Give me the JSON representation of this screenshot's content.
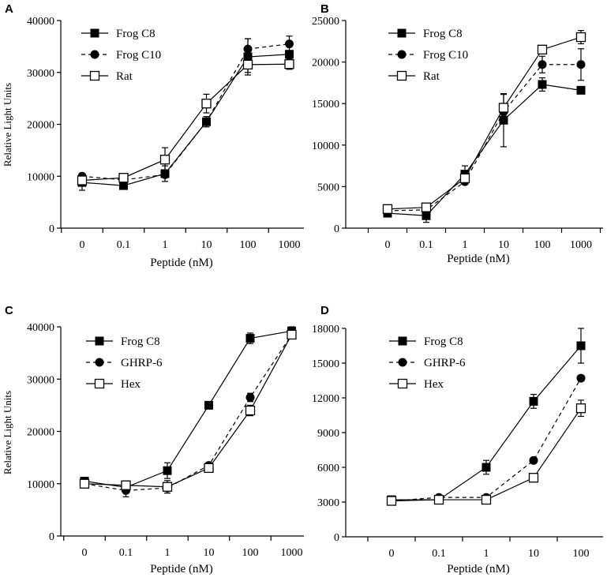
{
  "chart_data": [
    {
      "type": "line",
      "panel_label": "A",
      "xlabel": "Peptide (nM)",
      "ylabel": "Relative Light Units",
      "categories": [
        "0",
        "0.1",
        "1",
        "10",
        "100",
        "1000"
      ],
      "ylim": [
        0,
        40000
      ],
      "yticks": [
        "0",
        "10000",
        "20000",
        "30000",
        "40000"
      ],
      "series": [
        {
          "name": "Frog C8",
          "marker": "filled-square",
          "line": "solid",
          "values": [
            8800,
            8200,
            10500,
            20500,
            33000,
            33500
          ],
          "errors": [
            1500,
            0,
            1500,
            1000,
            3500,
            1500
          ]
        },
        {
          "name": "Frog C10",
          "marker": "filled-circle",
          "line": "dashed",
          "values": [
            10000,
            9300,
            10300,
            20500,
            34500,
            35500
          ],
          "errors": [
            0,
            0,
            0,
            0,
            2000,
            1500
          ]
        },
        {
          "name": "Rat",
          "marker": "open-square",
          "line": "solid",
          "values": [
            9200,
            9700,
            13200,
            24000,
            31500,
            31600
          ],
          "errors": [
            0,
            0,
            2300,
            1800,
            1500,
            1000
          ]
        }
      ]
    },
    {
      "type": "line",
      "panel_label": "B",
      "xlabel": "Peptide (nM)",
      "ylabel": "",
      "categories": [
        "0",
        "0.1",
        "1",
        "10",
        "100",
        "1000"
      ],
      "ylim": [
        0,
        25000
      ],
      "yticks": [
        "0",
        "5000",
        "10000",
        "15000",
        "20000",
        "25000"
      ],
      "series": [
        {
          "name": "Frog C8",
          "marker": "filled-square",
          "line": "solid",
          "values": [
            1800,
            1500,
            6500,
            13000,
            17300,
            16600
          ],
          "errors": [
            0,
            800,
            1000,
            3200,
            800,
            0
          ]
        },
        {
          "name": "Frog C10",
          "marker": "filled-circle",
          "line": "dashed",
          "values": [
            2100,
            2200,
            5600,
            14000,
            19700,
            19700
          ],
          "errors": [
            0,
            0,
            0,
            0,
            1000,
            1900
          ]
        },
        {
          "name": "Rat",
          "marker": "open-square",
          "line": "solid",
          "values": [
            2300,
            2500,
            6000,
            14500,
            21500,
            23000
          ],
          "errors": [
            0,
            0,
            0,
            1600,
            500,
            800
          ]
        }
      ]
    },
    {
      "type": "line",
      "panel_label": "C",
      "xlabel": "Peptide (nM)",
      "ylabel": "Relative Light Units",
      "categories": [
        "0",
        "0.1",
        "1",
        "10",
        "100",
        "1000"
      ],
      "ylim": [
        0,
        40000
      ],
      "yticks": [
        "0",
        "10000",
        "20000",
        "30000",
        "40000"
      ],
      "series": [
        {
          "name": "Frog C8",
          "marker": "filled-square",
          "line": "solid",
          "values": [
            10500,
            9300,
            12500,
            25000,
            37800,
            39200
          ],
          "errors": [
            0,
            0,
            1500,
            0,
            1000,
            800
          ]
        },
        {
          "name": "GHRP-6",
          "marker": "filled-circle",
          "line": "dashed",
          "values": [
            10000,
            8700,
            9200,
            13500,
            26500,
            38500
          ],
          "errors": [
            0,
            1200,
            0,
            0,
            800,
            0
          ]
        },
        {
          "name": "Hex",
          "marker": "open-square",
          "line": "solid",
          "values": [
            10000,
            9700,
            9400,
            13000,
            24000,
            38500
          ],
          "errors": [
            0,
            800,
            1200,
            800,
            1000,
            0
          ]
        }
      ]
    },
    {
      "type": "line",
      "panel_label": "D",
      "xlabel": "Peptide (nM)",
      "ylabel": "",
      "categories": [
        "0",
        "0.1",
        "1",
        "10",
        "100"
      ],
      "ylim": [
        0,
        18000
      ],
      "yticks": [
        "0",
        "3000",
        "6000",
        "9000",
        "12000",
        "15000",
        "18000"
      ],
      "series": [
        {
          "name": "Frog C8",
          "marker": "filled-square",
          "line": "solid",
          "values": [
            3200,
            3200,
            6000,
            11700,
            16500
          ],
          "errors": [
            0,
            0,
            600,
            600,
            1500
          ]
        },
        {
          "name": "GHRP-6",
          "marker": "filled-circle",
          "line": "dashed",
          "values": [
            3100,
            3400,
            3400,
            6600,
            13700
          ],
          "errors": [
            0,
            0,
            0,
            0,
            0
          ]
        },
        {
          "name": "Hex",
          "marker": "open-square",
          "line": "solid",
          "values": [
            3100,
            3200,
            3200,
            5100,
            11100
          ],
          "errors": [
            0,
            0,
            0,
            0,
            700
          ]
        }
      ]
    }
  ]
}
